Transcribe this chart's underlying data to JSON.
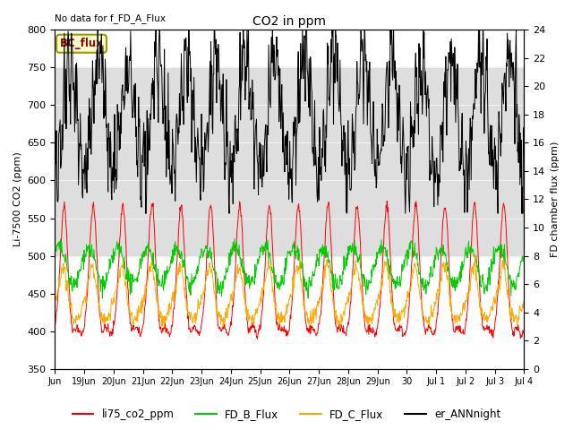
{
  "title": "CO2 in ppm",
  "top_left_text": "No data for f_FD_A_Flux",
  "ylabel_left": "Li-7500 CO2 (ppm)",
  "ylabel_right": "FD chamber flux (ppm)",
  "ylim_left": [
    350,
    800
  ],
  "ylim_right": [
    0,
    24
  ],
  "yticks_left": [
    350,
    400,
    450,
    500,
    550,
    600,
    650,
    700,
    750,
    800
  ],
  "yticks_right": [
    0,
    2,
    4,
    6,
    8,
    10,
    12,
    14,
    16,
    18,
    20,
    22,
    24
  ],
  "shade_band": [
    500,
    750
  ],
  "bc_flux_label": "BC_flux",
  "legend_entries": [
    "li75_co2_ppm",
    "FD_B_Flux",
    "FD_C_Flux",
    "er_ANNnight"
  ],
  "legend_colors": [
    "#ff0000",
    "#00cc00",
    "#ffaa00",
    "#000000"
  ],
  "line_colors": {
    "li75": "#ff0000",
    "fd_b": "#00cc00",
    "fd_c": "#ffaa00",
    "er_ann": "#000000"
  },
  "n_points": 1000,
  "xtick_offsets": [
    0,
    1,
    2,
    3,
    4,
    5,
    6,
    7,
    8,
    9,
    10,
    11,
    12,
    13,
    14,
    15,
    16
  ],
  "xtick_labels": [
    "Jun",
    "19Jun",
    "20Jun",
    "21Jun",
    "22Jun",
    "23Jun",
    "24Jun",
    "25Jun",
    "26Jun",
    "27Jun",
    "28Jun",
    "29Jun",
    "30",
    "Jul 1",
    "Jul 2",
    "Jul 3",
    "Jul 4"
  ]
}
